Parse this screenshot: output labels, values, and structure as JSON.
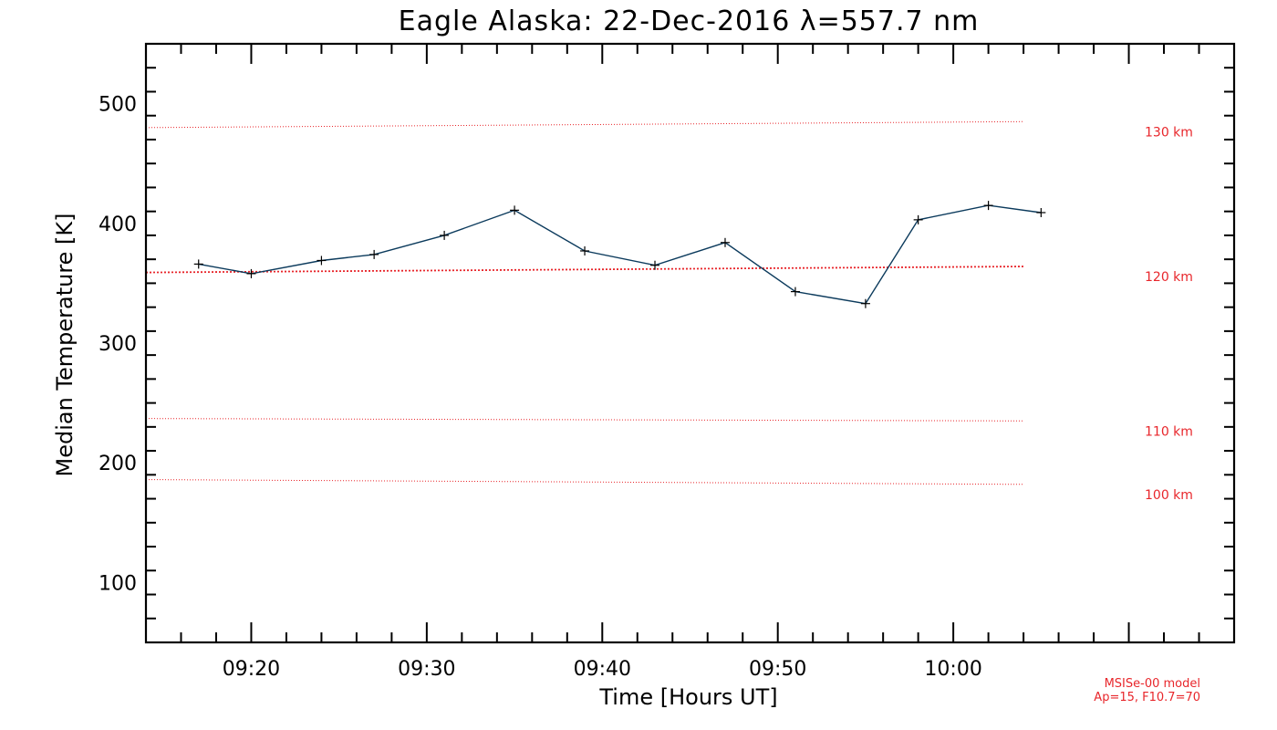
{
  "chart_data": {
    "type": "line",
    "title": "Eagle Alaska: 22-Dec-2016 λ=557.7 nm",
    "xlabel": "Time [Hours UT]",
    "ylabel": "Median Temperature [K]",
    "xlim": [
      "09:14",
      "10:16"
    ],
    "ylim": [
      50,
      550
    ],
    "x_ticks": [
      "09:20",
      "09:30",
      "09:40",
      "09:50",
      "10:00"
    ],
    "y_ticks": [
      100,
      200,
      300,
      400,
      500
    ],
    "grid": false,
    "series": [
      {
        "color": "#0b3a5c",
        "marker": "plus",
        "x": [
          "09:17",
          "09:20",
          "09:24",
          "09:27",
          "09:31",
          "09:35",
          "09:39",
          "09:43",
          "09:47",
          "09:51",
          "09:55",
          "09:58",
          "10:02",
          "10:05"
        ],
        "values": [
          366,
          358,
          369,
          374,
          390,
          411,
          377,
          365,
          384,
          343,
          333,
          403,
          415,
          409
        ]
      }
    ],
    "reference_lines": [
      {
        "label": "130 km",
        "start": 480,
        "end": 485,
        "color": "#e8262b",
        "style": "dotted"
      },
      {
        "label": "120 km",
        "start": 359,
        "end": 364,
        "color": "#e8262b",
        "style": "dotted"
      },
      {
        "label": "110 km",
        "start": 237,
        "end": 235,
        "color": "#e8262b",
        "style": "dotted"
      },
      {
        "label": "100 km",
        "start": 186,
        "end": 182,
        "color": "#e8262b",
        "style": "dotted"
      }
    ],
    "reference_line_xlim": [
      "09:14",
      "10:04"
    ],
    "annotation": [
      "MSISe-00 model",
      "Ap=15, F10.7=70"
    ]
  }
}
